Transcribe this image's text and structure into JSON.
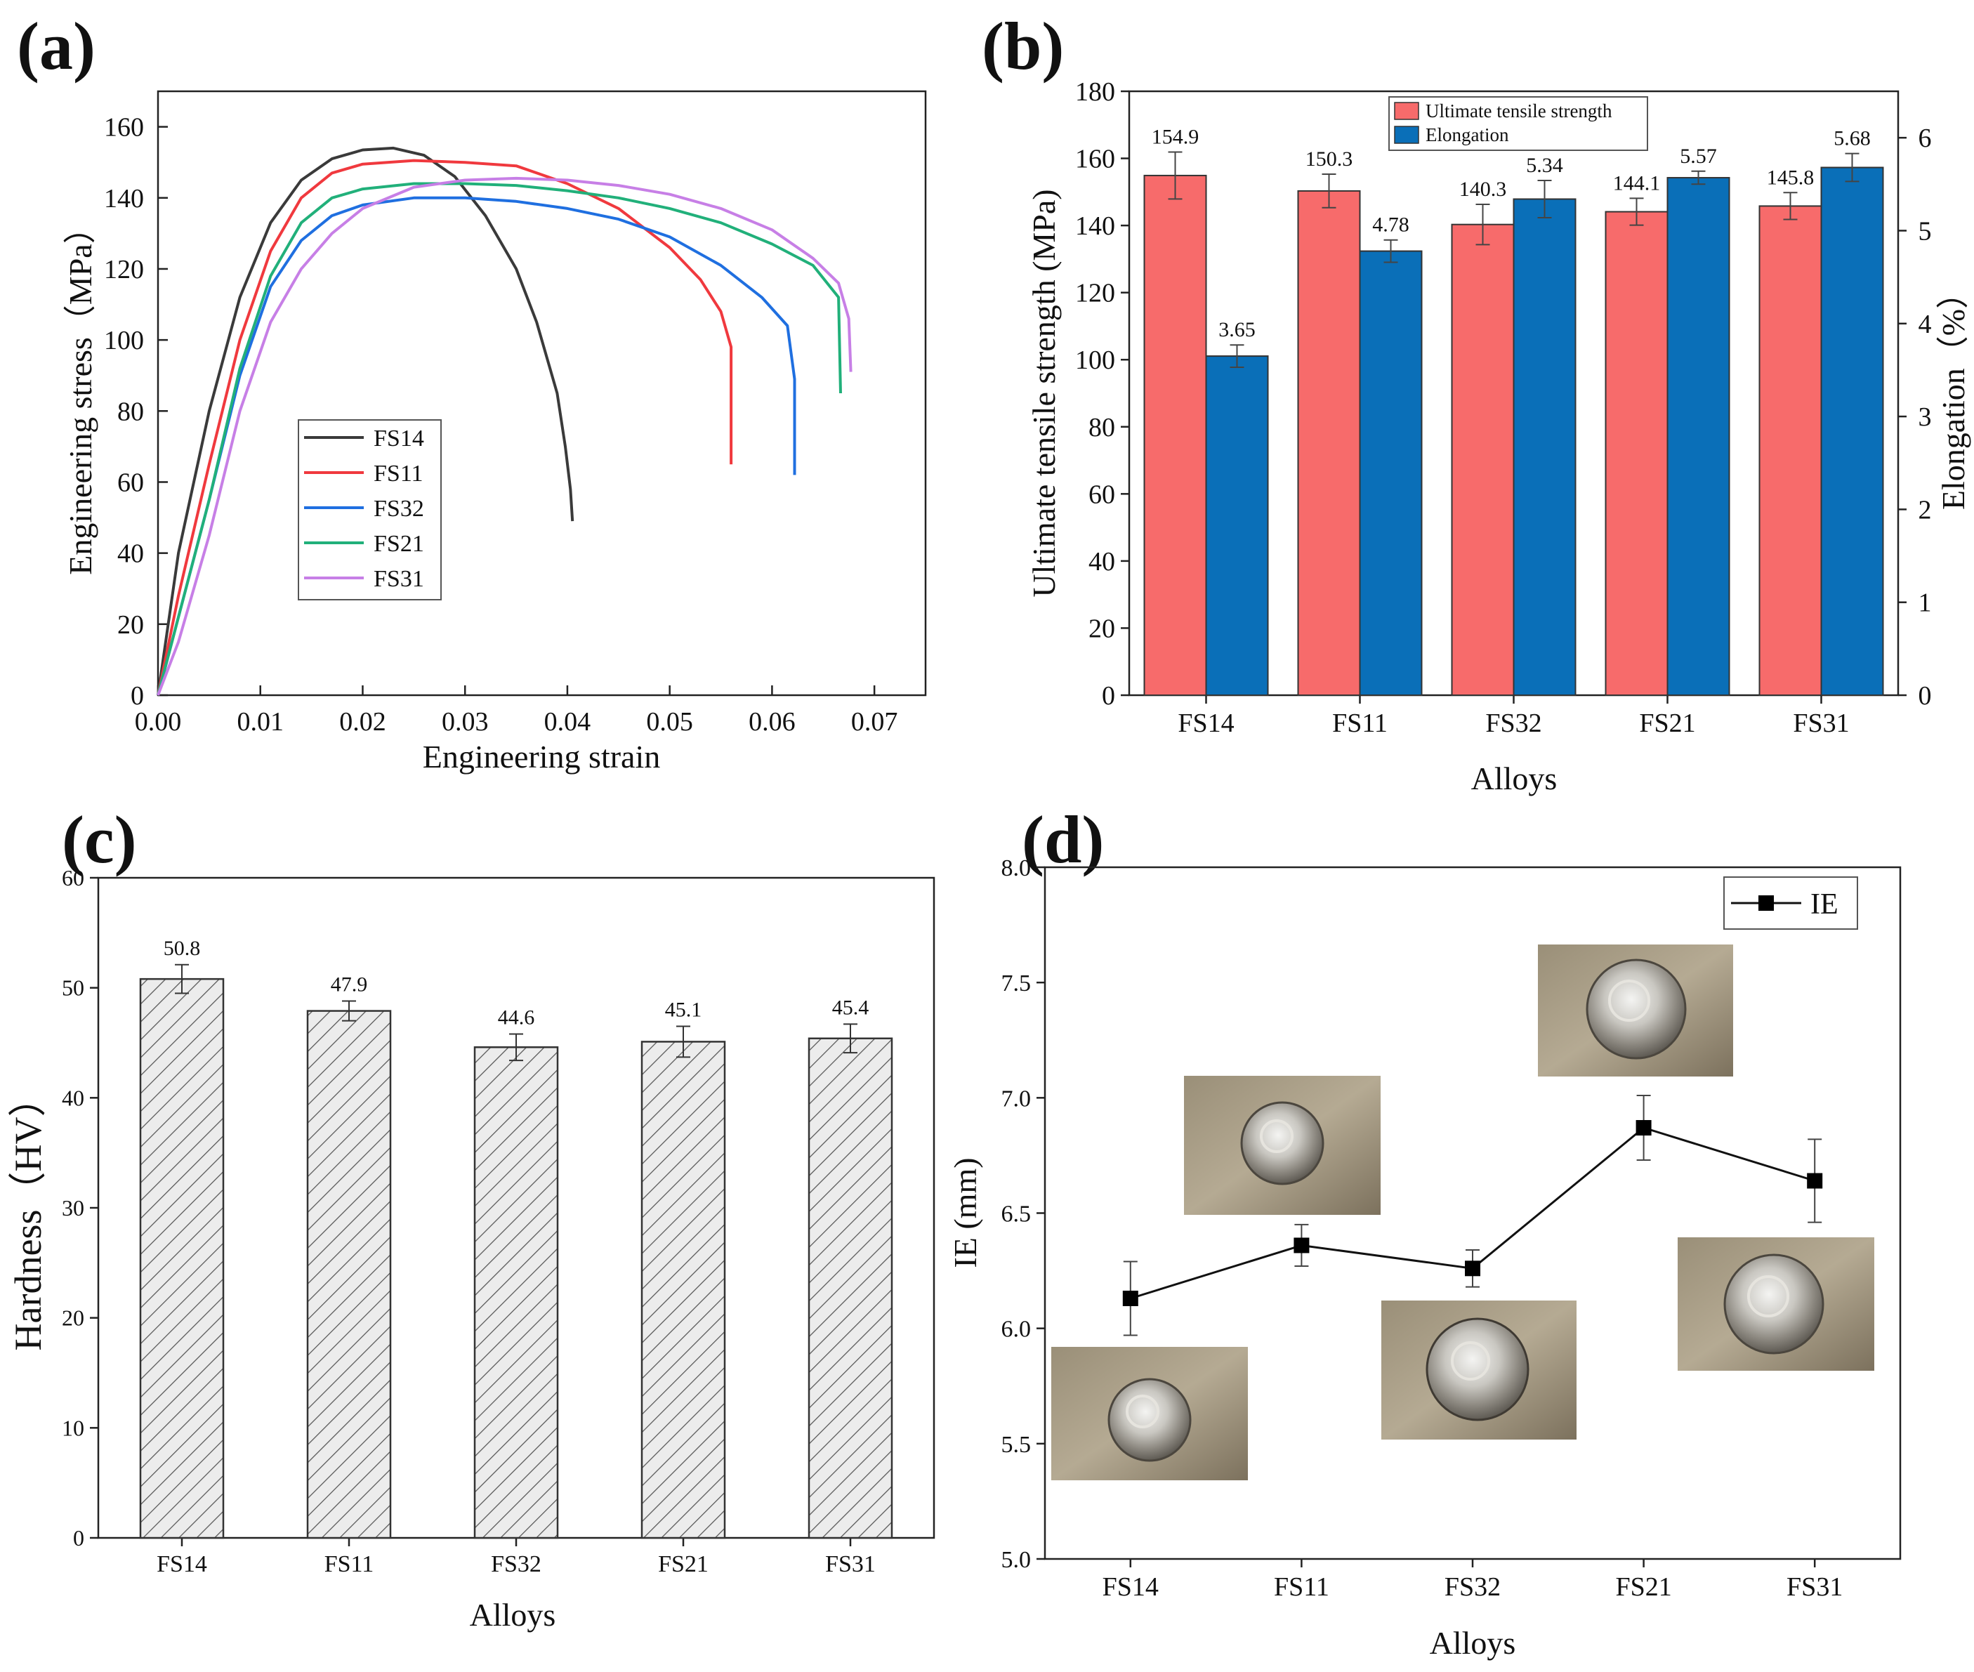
{
  "figure": {
    "panel_labels": [
      "(a)",
      "(b)",
      "(c)",
      "(d)"
    ],
    "colors": {
      "FS14": "#3a3a3a",
      "FS11": "#f0393e",
      "FS32": "#1f6fe0",
      "FS21": "#21b07a",
      "FS31": "#c77fe6",
      "uts_bar": "#f76b6b",
      "elong_bar": "#0a6fb8",
      "hardness_fill": "#d8d8d8",
      "ie_marker": "#000000",
      "axis": "#222222"
    }
  },
  "chart_data": [
    {
      "panel": "(a)",
      "type": "line",
      "title": "",
      "xlabel": "Engineering strain",
      "ylabel": "Engineering stress（MPa）",
      "xlim": [
        0.0,
        0.075
      ],
      "ylim": [
        0,
        170
      ],
      "xticks": [
        "0.00",
        "0.01",
        "0.02",
        "0.03",
        "0.04",
        "0.05",
        "0.06",
        "0.07"
      ],
      "yticks": [
        "0",
        "20",
        "40",
        "60",
        "80",
        "100",
        "120",
        "140",
        "160"
      ],
      "legend_position": "center-left",
      "series": [
        {
          "name": "FS14",
          "x": [
            0,
            0.002,
            0.005,
            0.008,
            0.011,
            0.014,
            0.017,
            0.02,
            0.023,
            0.026,
            0.029,
            0.032,
            0.035,
            0.037,
            0.039,
            0.0398,
            0.0403,
            0.0405
          ],
          "y": [
            0,
            40,
            80,
            112,
            133,
            145,
            151,
            153.5,
            154,
            152,
            146,
            135,
            120,
            105,
            85,
            70,
            58,
            49
          ]
        },
        {
          "name": "FS11",
          "x": [
            0,
            0.002,
            0.005,
            0.008,
            0.011,
            0.014,
            0.017,
            0.02,
            0.025,
            0.03,
            0.035,
            0.04,
            0.045,
            0.05,
            0.053,
            0.055,
            0.056,
            0.056
          ],
          "y": [
            0,
            28,
            65,
            100,
            125,
            140,
            147,
            149.5,
            150.5,
            150,
            149,
            144,
            137,
            126,
            117,
            108,
            98,
            65
          ]
        },
        {
          "name": "FS32",
          "x": [
            0,
            0.002,
            0.005,
            0.008,
            0.011,
            0.014,
            0.017,
            0.02,
            0.025,
            0.03,
            0.035,
            0.04,
            0.045,
            0.05,
            0.055,
            0.059,
            0.0615,
            0.0622,
            0.0622
          ],
          "y": [
            0,
            22,
            55,
            90,
            115,
            128,
            135,
            138,
            140,
            140,
            139,
            137,
            134,
            129,
            121,
            112,
            104,
            89,
            62
          ]
        },
        {
          "name": "FS21",
          "x": [
            0,
            0.002,
            0.005,
            0.008,
            0.011,
            0.014,
            0.017,
            0.02,
            0.025,
            0.03,
            0.035,
            0.04,
            0.045,
            0.05,
            0.055,
            0.06,
            0.064,
            0.0665,
            0.0667
          ],
          "y": [
            0,
            22,
            55,
            92,
            118,
            133,
            140,
            142.5,
            144,
            144,
            143.5,
            142,
            140,
            137,
            133,
            127,
            121,
            112,
            85
          ]
        },
        {
          "name": "FS31",
          "x": [
            0,
            0.002,
            0.005,
            0.008,
            0.011,
            0.014,
            0.017,
            0.02,
            0.025,
            0.03,
            0.035,
            0.04,
            0.045,
            0.05,
            0.055,
            0.06,
            0.064,
            0.0665,
            0.0675,
            0.0677
          ],
          "y": [
            0,
            15,
            45,
            80,
            105,
            120,
            130,
            137,
            143,
            145,
            145.5,
            145,
            143.5,
            141,
            137,
            131,
            123,
            116,
            106,
            91
          ]
        }
      ]
    },
    {
      "panel": "(b)",
      "type": "bar",
      "title": "",
      "xlabel": "Alloys",
      "ylabel": "Ultimate tensile strength (MPa)",
      "ylabel_right": "Elongation（%）",
      "categories": [
        "FS14",
        "FS11",
        "FS32",
        "FS21",
        "FS31"
      ],
      "ylim": [
        0,
        180
      ],
      "ylim_right": [
        0,
        6.5
      ],
      "yticks": [
        "0",
        "20",
        "40",
        "60",
        "80",
        "100",
        "120",
        "140",
        "160",
        "180"
      ],
      "yticks_right": [
        "0",
        "1",
        "2",
        "3",
        "4",
        "5",
        "6"
      ],
      "legend_position": "top-center",
      "series": [
        {
          "name": "Ultimate tensile strength",
          "axis": "left",
          "values": [
            154.9,
            150.3,
            140.3,
            144.1,
            145.8
          ],
          "errors": [
            7,
            5,
            6,
            4,
            4
          ],
          "labels": [
            "154.9",
            "150.3",
            "140.3",
            "144.1",
            "145.8"
          ]
        },
        {
          "name": "Elongation",
          "axis": "right",
          "values": [
            3.65,
            4.78,
            5.34,
            5.57,
            5.68
          ],
          "errors": [
            0.12,
            0.12,
            0.2,
            0.07,
            0.15
          ],
          "labels": [
            "3.65",
            "4.78",
            "5.34",
            "5.57",
            "5.68"
          ]
        }
      ]
    },
    {
      "panel": "(c)",
      "type": "bar",
      "title": "",
      "xlabel": "Alloys",
      "ylabel": "Hardness（HV）",
      "categories": [
        "FS14",
        "FS11",
        "FS32",
        "FS21",
        "FS31"
      ],
      "ylim": [
        0,
        60
      ],
      "yticks": [
        "0",
        "10",
        "20",
        "30",
        "40",
        "50",
        "60"
      ],
      "values": [
        50.8,
        47.9,
        44.6,
        45.1,
        45.4
      ],
      "errors": [
        1.3,
        0.9,
        1.2,
        1.4,
        1.3
      ],
      "labels": [
        "50.8",
        "47.9",
        "44.6",
        "45.1",
        "45.4"
      ]
    },
    {
      "panel": "(d)",
      "type": "line",
      "title": "",
      "xlabel": "Alloys",
      "ylabel": "IE (mm)",
      "categories": [
        "FS14",
        "FS11",
        "FS32",
        "FS21",
        "FS31"
      ],
      "ylim": [
        5.0,
        8.0
      ],
      "yticks": [
        "5.0",
        "5.5",
        "6.0",
        "6.5",
        "7.0",
        "7.5",
        "8.0"
      ],
      "legend_position": "top-right",
      "series": [
        {
          "name": "IE",
          "values": [
            6.13,
            6.36,
            6.26,
            6.87,
            6.64
          ],
          "errors": [
            0.16,
            0.09,
            0.08,
            0.14,
            0.18
          ]
        }
      ]
    }
  ]
}
